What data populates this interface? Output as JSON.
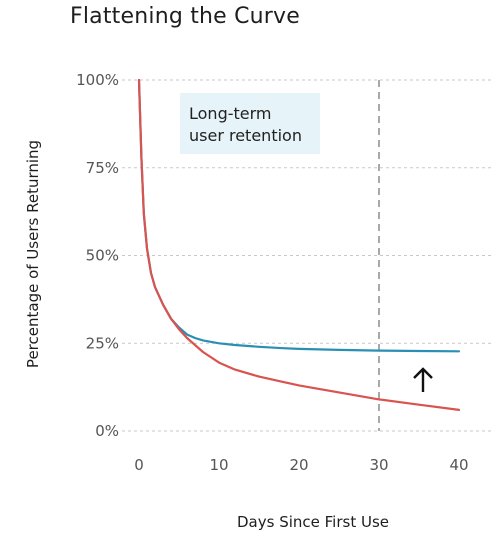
{
  "chart_data": {
    "type": "line",
    "title": "Flattening the Curve",
    "xlabel": "Days Since First Use",
    "ylabel": "Percentage of Users Returning",
    "xlim": [
      0,
      40
    ],
    "ylim": [
      0,
      100
    ],
    "x_ticks": [
      0,
      10,
      20,
      30,
      40
    ],
    "y_ticks": [
      {
        "value": 0,
        "label": "0%"
      },
      {
        "value": 25,
        "label": "25%"
      },
      {
        "value": 50,
        "label": "50%"
      },
      {
        "value": 75,
        "label": "75%"
      },
      {
        "value": 100,
        "label": "100%"
      }
    ],
    "grid": "horizontal dashed",
    "series": [
      {
        "color": "#d9534f",
        "x": [
          0,
          0.3,
          0.6,
          1,
          1.5,
          2,
          3,
          4,
          5,
          6,
          7,
          8,
          10,
          12,
          15,
          18,
          20,
          25,
          30,
          35,
          40
        ],
        "y": [
          100,
          78,
          62,
          52,
          45,
          41,
          36,
          32,
          29,
          26.5,
          24.5,
          22.5,
          19.5,
          17.5,
          15.5,
          14,
          13,
          11,
          9,
          7.5,
          6
        ]
      },
      {
        "color": "#2a8fb5",
        "x": [
          0,
          0.3,
          0.6,
          1,
          1.5,
          2,
          3,
          4,
          5,
          6,
          7,
          8,
          10,
          12,
          15,
          18,
          20,
          25,
          30,
          35,
          40
        ],
        "y": [
          100,
          78,
          62,
          52,
          45,
          41,
          36,
          32,
          29.5,
          27.5,
          26.5,
          25.8,
          25,
          24.5,
          24,
          23.6,
          23.4,
          23.1,
          22.9,
          22.8,
          22.7
        ]
      }
    ],
    "annotations": {
      "label": "Long-term user retention",
      "label_lines": [
        "Long-term",
        "user retention"
      ],
      "label_bg": "#e6f3f8",
      "vline_x": 30,
      "arrow": "up",
      "arrow_x": 36
    }
  }
}
